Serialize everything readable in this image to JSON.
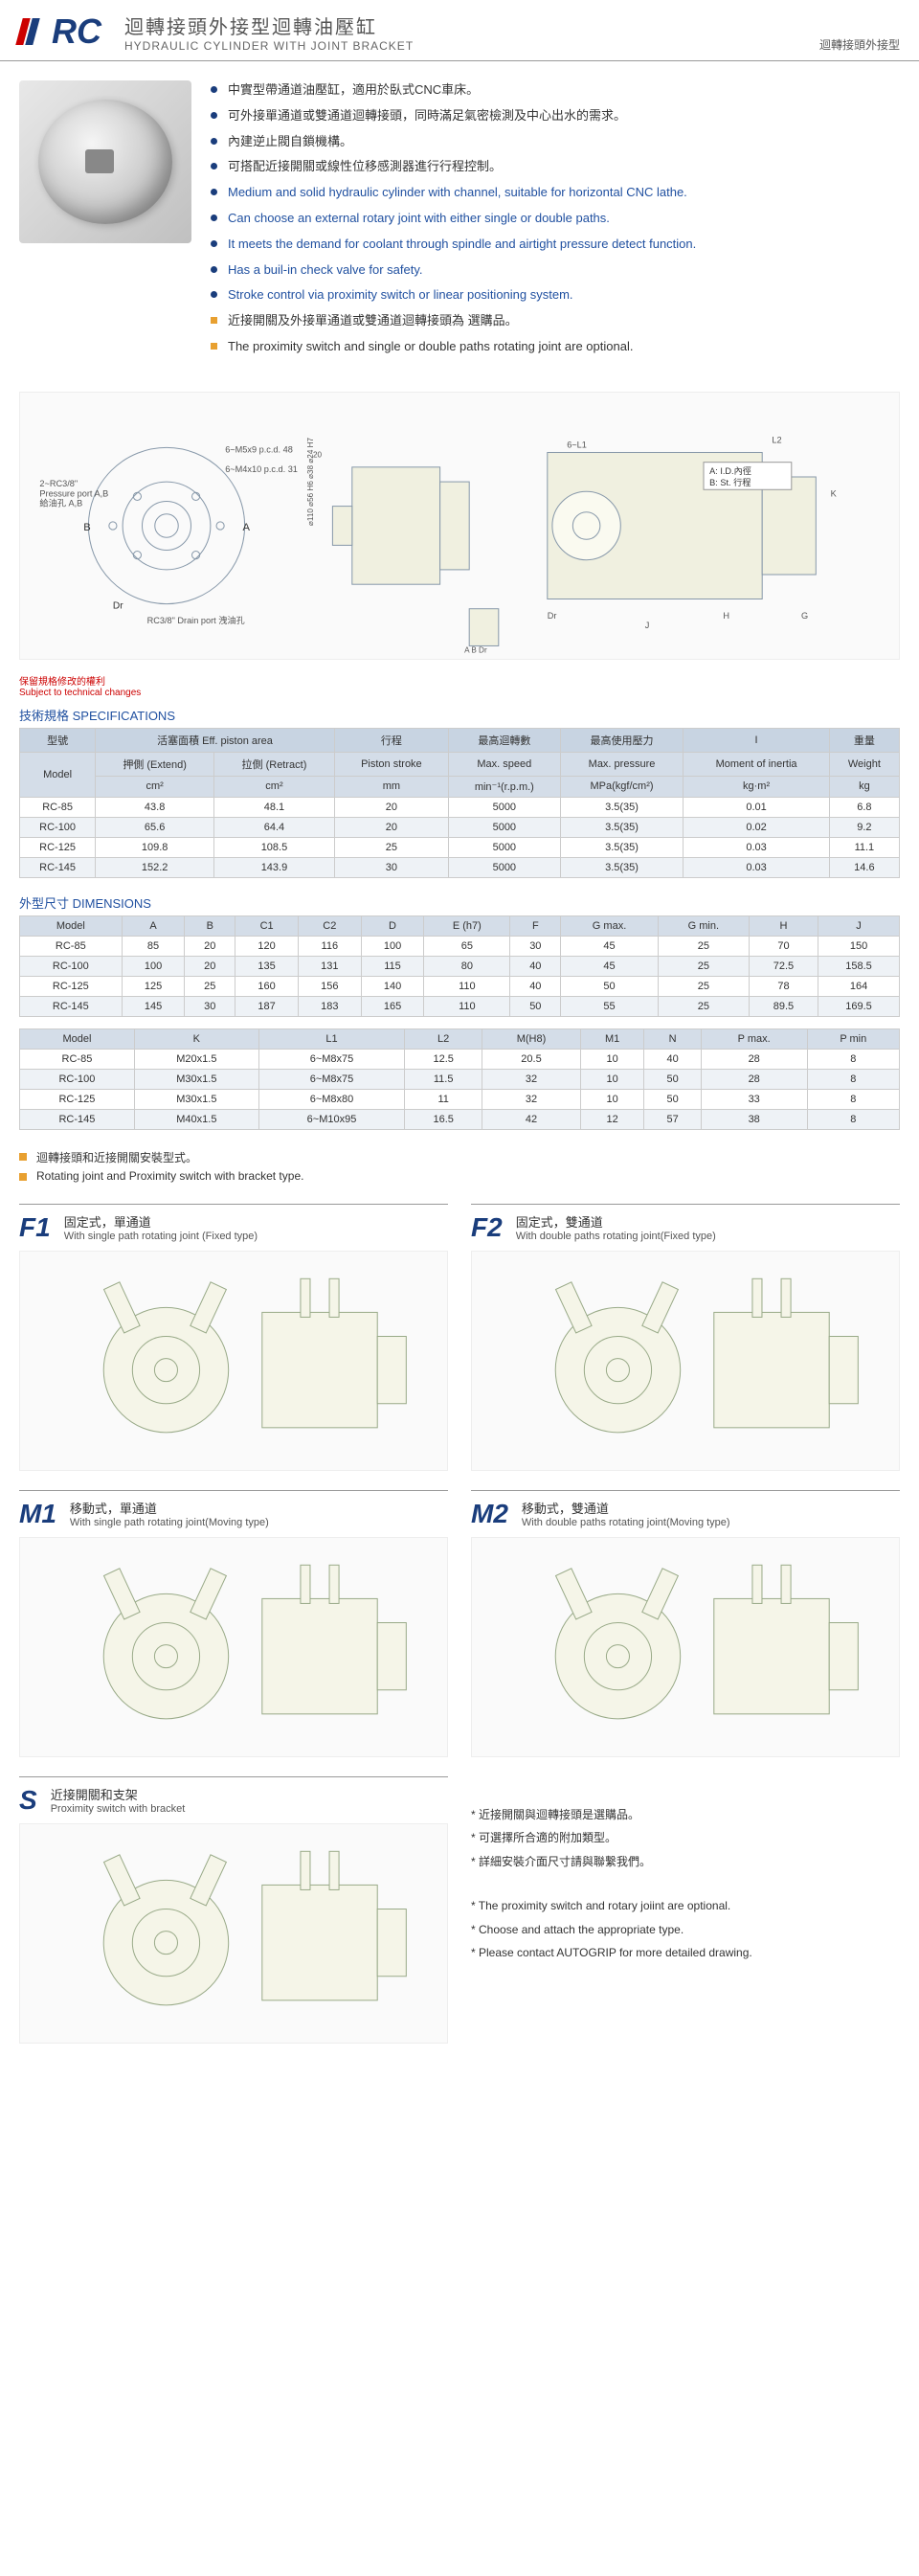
{
  "header": {
    "code": "RC",
    "title_zh": "迴轉接頭外接型迴轉油壓缸",
    "title_en": "HYDRAULIC CYLINDER WITH JOINT BRACKET",
    "right_label": "迴轉接頭外接型"
  },
  "bullets_zh": [
    "中實型帶通道油壓缸，適用於臥式CNC車床。",
    "可外接單通道或雙通道迴轉接頭，同時滿足氣密檢測及中心出水的需求。",
    "內建逆止閥自鎖機構。",
    "可搭配近接開關或線性位移感測器進行行程控制。"
  ],
  "bullets_en": [
    "Medium and solid hydraulic cylinder with channel, suitable for horizontal CNC lathe.",
    "Can choose an external rotary joint with either single or double paths.",
    "It meets the demand for coolant through spindle and airtight pressure detect function.",
    "Has a buil-in check valve for safety.",
    "Stroke control via proximity switch or linear positioning system."
  ],
  "bullets_opt": [
    "近接開關及外接單通道或雙通道迴轉接頭為 選購品。",
    "The proximity switch and single or double paths rotating joint are optional."
  ],
  "diagram_labels": {
    "port_label": "2~RC3/8\"\nPressure port A,B\n給油孔 A,B",
    "m5x9": "6~M5x9\np.c.d. 48",
    "m4x10": "6~M4x10\np.c.d. 31",
    "drain": "RC3/8\"\nDrain port 洩油孔",
    "id_label": "A: I.D.內徑\nB: St. 行程"
  },
  "notice_zh": "保留規格修改的權利",
  "notice_en": "Subject to technical changes",
  "spec_title": "技術規格 SPECIFICATIONS",
  "spec_table": {
    "header_groups": [
      "型號",
      "活塞面積 Eff. piston area",
      "行程",
      "最高迴轉數",
      "最高使用壓力",
      "I",
      "重量"
    ],
    "header_sub": [
      "Model",
      "押側 (Extend)",
      "拉側 (Retract)",
      "Piston stroke",
      "Max. speed",
      "Max. pressure",
      "Moment of inertia",
      "Weight"
    ],
    "header_units": [
      "",
      "cm²",
      "cm²",
      "mm",
      "min⁻¹(r.p.m.)",
      "MPa(kgf/cm²)",
      "kg·m²",
      "kg"
    ],
    "rows": [
      [
        "RC-85",
        "43.8",
        "48.1",
        "20",
        "5000",
        "3.5(35)",
        "0.01",
        "6.8"
      ],
      [
        "RC-100",
        "65.6",
        "64.4",
        "20",
        "5000",
        "3.5(35)",
        "0.02",
        "9.2"
      ],
      [
        "RC-125",
        "109.8",
        "108.5",
        "25",
        "5000",
        "3.5(35)",
        "0.03",
        "11.1"
      ],
      [
        "RC-145",
        "152.2",
        "143.9",
        "30",
        "5000",
        "3.5(35)",
        "0.03",
        "14.6"
      ]
    ]
  },
  "dim_title": "外型尺寸 DIMENSIONS",
  "dim_table1": {
    "headers": [
      "Model",
      "A",
      "B",
      "C1",
      "C2",
      "D",
      "E (h7)",
      "F",
      "G max.",
      "G min.",
      "H",
      "J"
    ],
    "rows": [
      [
        "RC-85",
        "85",
        "20",
        "120",
        "116",
        "100",
        "65",
        "30",
        "45",
        "25",
        "70",
        "150"
      ],
      [
        "RC-100",
        "100",
        "20",
        "135",
        "131",
        "115",
        "80",
        "40",
        "45",
        "25",
        "72.5",
        "158.5"
      ],
      [
        "RC-125",
        "125",
        "25",
        "160",
        "156",
        "140",
        "110",
        "40",
        "50",
        "25",
        "78",
        "164"
      ],
      [
        "RC-145",
        "145",
        "30",
        "187",
        "183",
        "165",
        "110",
        "50",
        "55",
        "25",
        "89.5",
        "169.5"
      ]
    ]
  },
  "dim_table2": {
    "headers": [
      "Model",
      "K",
      "L1",
      "L2",
      "M(H8)",
      "M1",
      "N",
      "P max.",
      "P min"
    ],
    "rows": [
      [
        "RC-85",
        "M20x1.5",
        "6~M8x75",
        "12.5",
        "20.5",
        "10",
        "40",
        "28",
        "8"
      ],
      [
        "RC-100",
        "M30x1.5",
        "6~M8x75",
        "11.5",
        "32",
        "10",
        "50",
        "28",
        "8"
      ],
      [
        "RC-125",
        "M30x1.5",
        "6~M8x80",
        "11",
        "32",
        "10",
        "50",
        "33",
        "8"
      ],
      [
        "RC-145",
        "M40x1.5",
        "6~M10x95",
        "16.5",
        "42",
        "12",
        "57",
        "38",
        "8"
      ]
    ]
  },
  "joint_notes": [
    "迴轉接頭和近接開關安裝型式。",
    "Rotating joint and Proximity switch with bracket type."
  ],
  "configs": [
    {
      "code": "F1",
      "zh": "固定式，單通道",
      "en": "With single path rotating joint (Fixed type)"
    },
    {
      "code": "F2",
      "zh": "固定式，雙通道",
      "en": "With double paths rotating joint(Fixed type)"
    },
    {
      "code": "M1",
      "zh": "移動式，單通道",
      "en": "With single path rotating joint(Moving type)"
    },
    {
      "code": "M2",
      "zh": "移動式，雙通道",
      "en": "With double paths rotating joint(Moving type)"
    },
    {
      "code": "S",
      "zh": "近接開關和支架",
      "en": "Proximity switch with bracket"
    }
  ],
  "bottom_notes_zh": [
    "* 近接開關與迴轉接頭是選購品。",
    "* 可選擇所合適的附加類型。",
    "* 詳細安裝介面尺寸請與聯繫我們。"
  ],
  "bottom_notes_en": [
    "* The proximity switch and rotary joiint are optional.",
    "* Choose and attach the appropriate type.",
    "* Please contact AUTOGRIP for more detailed drawing."
  ]
}
